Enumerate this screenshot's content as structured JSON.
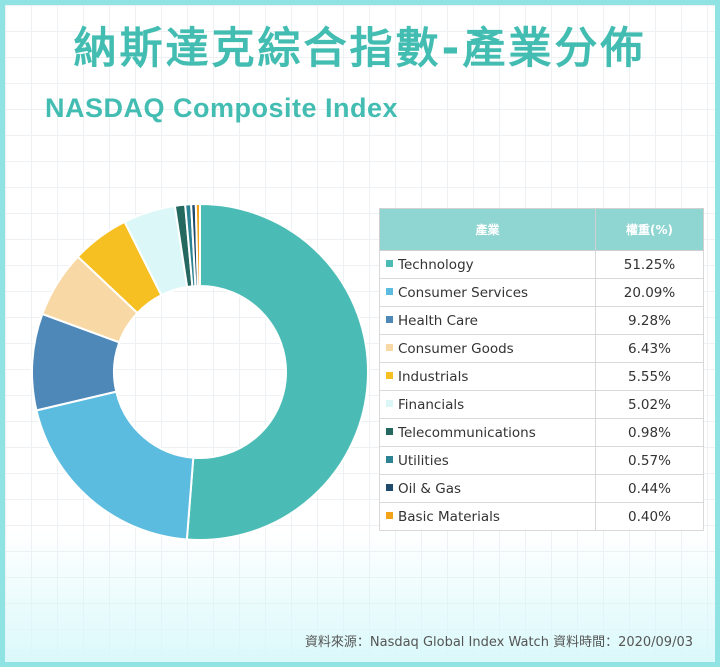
{
  "title": "納斯達克綜合指數-產業分佈",
  "subtitle": "NASDAQ Composite Index",
  "table": {
    "col_industry": "產業",
    "col_weight": "權重(%)"
  },
  "chart_data": {
    "type": "pie",
    "donut": true,
    "categories": [
      "Technology",
      "Consumer Services",
      "Health Care",
      "Consumer Goods",
      "Industrials",
      "Financials",
      "Telecommunications",
      "Utilities",
      "Oil & Gas",
      "Basic Materials"
    ],
    "values": [
      51.25,
      20.09,
      9.28,
      6.43,
      5.55,
      5.02,
      0.98,
      0.57,
      0.44,
      0.4
    ],
    "labels": [
      "51.25%",
      "20.09%",
      "9.28%",
      "6.43%",
      "5.55%",
      "5.02%",
      "0.98%",
      "0.57%",
      "0.44%",
      "0.40%"
    ],
    "colors": [
      "#4bbcb5",
      "#5bbcdf",
      "#4e88b9",
      "#f8d9a5",
      "#f6bf22",
      "#dcf7f7",
      "#24685f",
      "#2c8393",
      "#1f4a6b",
      "#f2a31a"
    ]
  },
  "source": "資料來源：Nasdaq Global Index Watch  資料時間：2020/09/03"
}
